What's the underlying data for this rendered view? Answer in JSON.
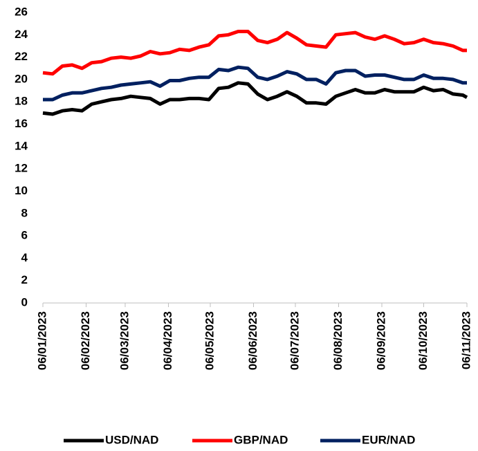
{
  "chart_data": {
    "type": "line",
    "x": [
      "2023-01-06",
      "2023-01-13",
      "2023-01-20",
      "2023-01-27",
      "2023-02-03",
      "2023-02-10",
      "2023-02-17",
      "2023-02-24",
      "2023-03-03",
      "2023-03-10",
      "2023-03-17",
      "2023-03-24",
      "2023-03-31",
      "2023-04-07",
      "2023-04-14",
      "2023-04-21",
      "2023-04-28",
      "2023-05-05",
      "2023-05-12",
      "2023-05-19",
      "2023-05-26",
      "2023-06-02",
      "2023-06-09",
      "2023-06-16",
      "2023-06-23",
      "2023-06-30",
      "2023-07-07",
      "2023-07-14",
      "2023-07-21",
      "2023-07-28",
      "2023-08-04",
      "2023-08-11",
      "2023-08-18",
      "2023-08-25",
      "2023-09-01",
      "2023-09-08",
      "2023-09-15",
      "2023-09-22",
      "2023-09-29",
      "2023-10-06",
      "2023-10-13",
      "2023-10-20",
      "2023-10-27",
      "2023-11-03",
      "2023-11-06"
    ],
    "series": [
      {
        "name": "USD/NAD",
        "color": "#000000",
        "values": [
          17.0,
          16.9,
          17.2,
          17.3,
          17.2,
          17.8,
          18.0,
          18.2,
          18.3,
          18.5,
          18.4,
          18.3,
          17.8,
          18.2,
          18.2,
          18.3,
          18.3,
          18.2,
          19.2,
          19.3,
          19.7,
          19.6,
          18.7,
          18.2,
          18.5,
          18.9,
          18.5,
          17.9,
          17.9,
          17.8,
          18.5,
          18.8,
          19.1,
          18.8,
          18.8,
          19.1,
          18.9,
          18.9,
          18.9,
          19.3,
          19.0,
          19.1,
          18.7,
          18.6,
          18.4
        ]
      },
      {
        "name": "GBP/NAD",
        "color": "#ff0000",
        "values": [
          20.6,
          20.5,
          21.2,
          21.3,
          21.0,
          21.5,
          21.6,
          21.9,
          22.0,
          21.9,
          22.1,
          22.5,
          22.3,
          22.4,
          22.7,
          22.6,
          22.9,
          23.1,
          23.9,
          24.0,
          24.3,
          24.3,
          23.5,
          23.3,
          23.6,
          24.2,
          23.7,
          23.1,
          23.0,
          22.9,
          24.0,
          24.1,
          24.2,
          23.8,
          23.6,
          23.9,
          23.6,
          23.2,
          23.3,
          23.6,
          23.3,
          23.2,
          23.0,
          22.6,
          22.6
        ]
      },
      {
        "name": "EUR/NAD",
        "color": "#002060",
        "values": [
          18.2,
          18.2,
          18.6,
          18.8,
          18.8,
          19.0,
          19.2,
          19.3,
          19.5,
          19.6,
          19.7,
          19.8,
          19.4,
          19.9,
          19.9,
          20.1,
          20.2,
          20.2,
          20.9,
          20.8,
          21.1,
          21.0,
          20.2,
          20.0,
          20.3,
          20.7,
          20.5,
          20.0,
          20.0,
          19.6,
          20.6,
          20.8,
          20.8,
          20.3,
          20.4,
          20.4,
          20.2,
          20.0,
          20.0,
          20.4,
          20.1,
          20.1,
          20.0,
          19.7,
          19.7
        ]
      }
    ],
    "xlim": [
      "2023-01-06",
      "2023-11-06"
    ],
    "xticks": [
      {
        "value": "2023-01-06",
        "label": "06/01/2023"
      },
      {
        "value": "2023-02-06",
        "label": "06/02/2023"
      },
      {
        "value": "2023-03-06",
        "label": "06/03/2023"
      },
      {
        "value": "2023-04-06",
        "label": "06/04/2023"
      },
      {
        "value": "2023-05-06",
        "label": "06/05/2023"
      },
      {
        "value": "2023-06-06",
        "label": "06/06/2023"
      },
      {
        "value": "2023-07-06",
        "label": "06/07/2023"
      },
      {
        "value": "2023-08-06",
        "label": "06/08/2023"
      },
      {
        "value": "2023-09-06",
        "label": "06/09/2023"
      },
      {
        "value": "2023-10-06",
        "label": "06/10/2023"
      },
      {
        "value": "2023-11-06",
        "label": "06/11/2023"
      }
    ],
    "ylim": [
      0,
      26
    ],
    "yticks": [
      0,
      2,
      4,
      6,
      8,
      10,
      12,
      14,
      16,
      18,
      20,
      22,
      24,
      26
    ],
    "grid": false,
    "legend": "bottom"
  }
}
